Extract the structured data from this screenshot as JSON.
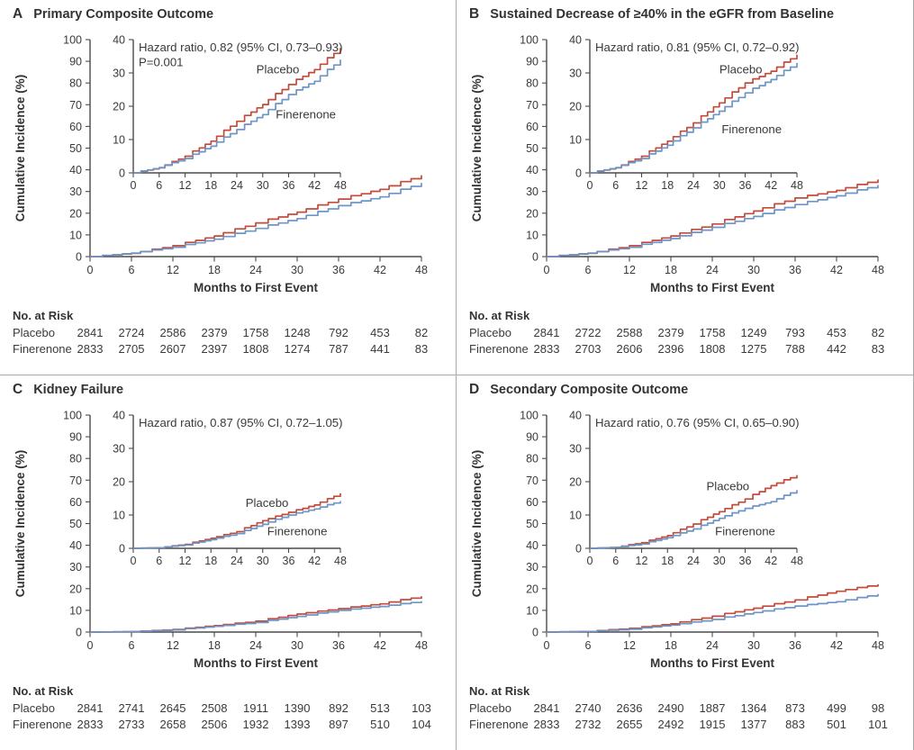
{
  "figure": {
    "colors": {
      "placebo_red": "#c44b3b",
      "finerenone_blue": "#6d95c7",
      "axis_gray": "#4a4a4a",
      "divider_gray": "#a9a9a9",
      "text_dark": "#3a3a3a"
    }
  },
  "axes": {
    "xlabel": "Months to First Event",
    "ylabel": "Cumulative Incidence (%)",
    "xticks": [
      0,
      6,
      12,
      18,
      24,
      30,
      36,
      42,
      48
    ],
    "main_yticks": [
      0,
      10,
      20,
      30,
      40,
      50,
      60,
      70,
      80,
      90,
      100
    ],
    "inset_yticks": [
      0,
      10,
      20,
      30,
      40
    ],
    "xlim": [
      0,
      48
    ],
    "main_ylim": [
      0,
      100
    ],
    "inset_ylim": [
      0,
      40
    ]
  },
  "chart_data": [
    {
      "type": "line",
      "letter": "A",
      "title": "Primary Composite Outcome",
      "hazard_lines": [
        "Hazard ratio, 0.82 (95% CI, 0.73–0.93)",
        "P=0.001"
      ],
      "x_months": [
        0,
        6,
        12,
        18,
        24,
        30,
        36,
        42,
        48
      ],
      "series": [
        {
          "name": "Placebo",
          "color": "#c44b3b",
          "values": [
            0,
            1.5,
            5,
            9.5,
            15.5,
            20.5,
            26.5,
            31,
            37.5
          ],
          "label_pos": {
            "x": 33.5,
            "y": 31
          }
        },
        {
          "name": "Finerenone",
          "color": "#6d95c7",
          "values": [
            0,
            1.6,
            4.3,
            8,
            13,
            17.5,
            23.5,
            27.5,
            34
          ],
          "label_pos": {
            "x": 40,
            "y": 17.5
          }
        }
      ],
      "risk_table": {
        "header": "No. at Risk",
        "rows": [
          {
            "label": "Placebo",
            "values": [
              2841,
              2724,
              2586,
              2379,
              1758,
              1248,
              792,
              453,
              82
            ]
          },
          {
            "label": "Finerenone",
            "values": [
              2833,
              2705,
              2607,
              2397,
              1808,
              1274,
              787,
              441,
              83
            ]
          }
        ]
      }
    },
    {
      "type": "line",
      "letter": "B",
      "title": "Sustained Decrease of ≥40% in the eGFR from Baseline",
      "hazard_lines": [
        "Hazard ratio, 0.81 (95% CI, 0.72–0.92)"
      ],
      "x_months": [
        0,
        6,
        12,
        18,
        24,
        30,
        36,
        42,
        48
      ],
      "series": [
        {
          "name": "Placebo",
          "color": "#c44b3b",
          "values": [
            0,
            1.5,
            5,
            9.5,
            15,
            21,
            27,
            30.5,
            35.5
          ],
          "label_pos": {
            "x": 35,
            "y": 31
          }
        },
        {
          "name": "Finerenone",
          "color": "#6d95c7",
          "values": [
            0,
            1.6,
            4.3,
            8.3,
            13.5,
            18.5,
            24,
            28,
            33
          ],
          "label_pos": {
            "x": 37.5,
            "y": 13
          }
        }
      ],
      "risk_table": {
        "header": "No. at Risk",
        "rows": [
          {
            "label": "Placebo",
            "values": [
              2841,
              2722,
              2588,
              2379,
              1758,
              1249,
              793,
              453,
              82
            ]
          },
          {
            "label": "Finerenone",
            "values": [
              2833,
              2703,
              2606,
              2396,
              1808,
              1275,
              788,
              442,
              83
            ]
          }
        ]
      }
    },
    {
      "type": "line",
      "letter": "C",
      "title": "Kidney Failure",
      "hazard_lines": [
        "Hazard ratio, 0.87 (95% CI, 0.72–1.05)"
      ],
      "x_months": [
        0,
        6,
        12,
        18,
        24,
        30,
        36,
        42,
        48
      ],
      "series": [
        {
          "name": "Placebo",
          "color": "#c44b3b",
          "values": [
            0,
            0.2,
            1.2,
            3,
            5,
            8.3,
            10.8,
            13,
            16.5
          ],
          "label_pos": {
            "x": 31,
            "y": 13.5
          }
        },
        {
          "name": "Finerenone",
          "color": "#6d95c7",
          "values": [
            0,
            0.2,
            1,
            2.6,
            4.4,
            7.2,
            10,
            11.8,
            14.2
          ],
          "label_pos": {
            "x": 38,
            "y": 5
          }
        }
      ],
      "risk_table": {
        "header": "No. at Risk",
        "rows": [
          {
            "label": "Placebo",
            "values": [
              2841,
              2741,
              2645,
              2508,
              1911,
              1390,
              892,
              513,
              103
            ]
          },
          {
            "label": "Finerenone",
            "values": [
              2833,
              2733,
              2658,
              2506,
              1932,
              1393,
              897,
              510,
              104
            ]
          }
        ]
      }
    },
    {
      "type": "line",
      "letter": "D",
      "title": "Secondary Composite Outcome",
      "hazard_lines": [
        "Hazard ratio, 0.76 (95% CI, 0.65–0.90)"
      ],
      "x_months": [
        0,
        6,
        12,
        18,
        24,
        30,
        36,
        42,
        48
      ],
      "series": [
        {
          "name": "Placebo",
          "color": "#c44b3b",
          "values": [
            0,
            0.3,
            1.7,
            3.8,
            7.3,
            11,
            14.8,
            18.8,
            22
          ],
          "label_pos": {
            "x": 32,
            "y": 18.5
          }
        },
        {
          "name": "Finerenone",
          "color": "#6d95c7",
          "values": [
            0,
            0.3,
            1.3,
            3.2,
            5.8,
            9,
            12,
            14,
            17.5
          ],
          "label_pos": {
            "x": 36,
            "y": 5
          }
        }
      ],
      "risk_table": {
        "header": "No. at Risk",
        "rows": [
          {
            "label": "Placebo",
            "values": [
              2841,
              2740,
              2636,
              2490,
              1887,
              1364,
              873,
              499,
              98
            ]
          },
          {
            "label": "Finerenone",
            "values": [
              2833,
              2732,
              2655,
              2492,
              1915,
              1377,
              883,
              501,
              101
            ]
          }
        ]
      }
    }
  ]
}
